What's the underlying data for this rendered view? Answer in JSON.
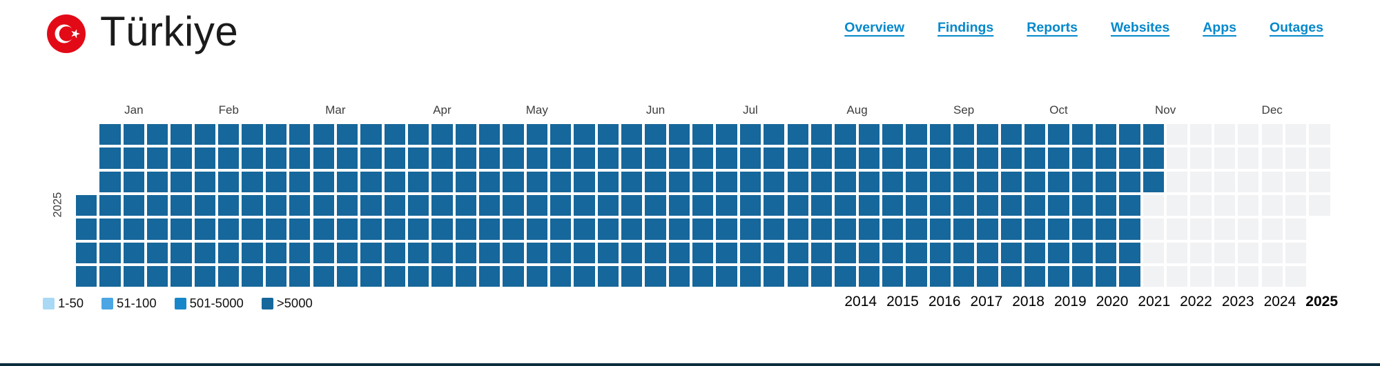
{
  "header": {
    "country_name": "Türkiye",
    "flag": {
      "name": "turkey-flag",
      "red": "#E30A17"
    },
    "nav": [
      {
        "label": "Overview"
      },
      {
        "label": "Findings"
      },
      {
        "label": "Reports"
      },
      {
        "label": "Websites"
      },
      {
        "label": "Apps"
      },
      {
        "label": "Outages"
      }
    ],
    "nav_color": "#0588CB"
  },
  "chart_data": {
    "type": "heatmap",
    "subtype": "calendar-year",
    "year_label": "2025",
    "months": [
      "Jan",
      "Feb",
      "Mar",
      "Apr",
      "May",
      "Jun",
      "Jul",
      "Aug",
      "Sep",
      "Oct",
      "Nov",
      "Dec"
    ],
    "month_day_offsets": [
      0,
      31,
      59,
      90,
      120,
      151,
      181,
      212,
      243,
      273,
      304,
      334
    ],
    "days_in_year": 365,
    "jan1_dow_index": 3,
    "weeks": 53,
    "filled_days": 315,
    "filled_level": ">5000",
    "note": "Every measured day Jan 1 - Nov 11 2025 is in the >5000 bucket; remaining days of the year are empty",
    "colors": {
      "filled": "#16679B",
      "empty": "#F1F2F4"
    },
    "legend": [
      {
        "label": "1-50",
        "color": "#A9D9F4"
      },
      {
        "label": "51-100",
        "color": "#4BA6E3"
      },
      {
        "label": "501-5000",
        "color": "#1787C9"
      },
      {
        "label": ">5000",
        "color": "#16679B"
      }
    ],
    "years": [
      "2014",
      "2015",
      "2016",
      "2017",
      "2018",
      "2019",
      "2020",
      "2021",
      "2022",
      "2023",
      "2024",
      "2025"
    ],
    "selected_year": "2025"
  },
  "footer": {
    "bar_color": "#0B2E3E"
  }
}
